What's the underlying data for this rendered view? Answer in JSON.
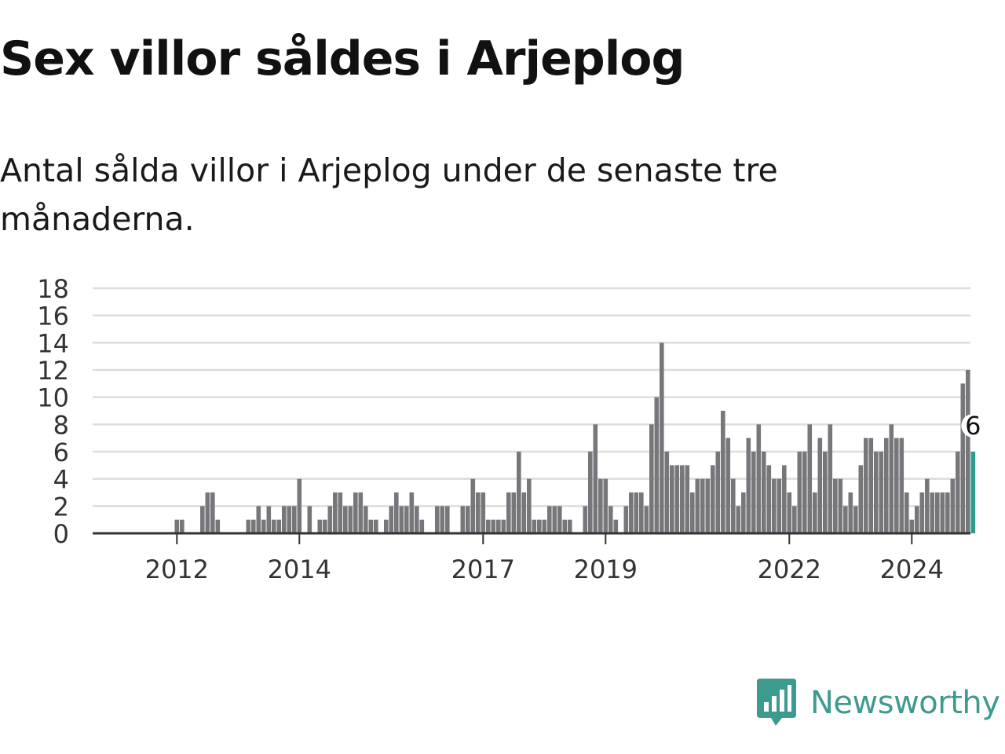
{
  "title": "Sex villor såldes i Arjeplog",
  "subtitle": "Antal sålda villor i Arjeplog under de senaste tre månaderna.",
  "brand": {
    "name": "Newsworthy",
    "icon": "newsworthy-logo-icon",
    "color": "#3d9a8e"
  },
  "colors": {
    "bar": "#77767b",
    "highlight": "#2a9d8f",
    "grid": "#dddddd",
    "axis": "#333333"
  },
  "chart_data": {
    "type": "bar",
    "ylim": [
      0,
      18
    ],
    "yticks": [
      0,
      2,
      4,
      6,
      8,
      10,
      12,
      14,
      16,
      18
    ],
    "xticks": [
      {
        "label": "2012",
        "index": 8
      },
      {
        "label": "2014",
        "index": 32
      },
      {
        "label": "2017",
        "index": 68
      },
      {
        "label": "2019",
        "index": 92
      },
      {
        "label": "2022",
        "index": 128
      },
      {
        "label": "2024",
        "index": 152
      }
    ],
    "grid": true,
    "values": [
      0,
      0,
      0,
      0,
      0,
      0,
      0,
      0,
      1,
      1,
      0,
      0,
      0,
      2,
      3,
      3,
      1,
      0,
      0,
      0,
      0,
      0,
      1,
      1,
      2,
      1,
      2,
      1,
      1,
      2,
      2,
      2,
      4,
      0,
      2,
      0,
      1,
      1,
      2,
      3,
      3,
      2,
      2,
      3,
      3,
      2,
      1,
      1,
      0,
      1,
      2,
      3,
      2,
      2,
      3,
      2,
      1,
      0,
      0,
      2,
      2,
      2,
      0,
      0,
      2,
      2,
      4,
      3,
      3,
      1,
      1,
      1,
      1,
      3,
      3,
      6,
      3,
      4,
      1,
      1,
      1,
      2,
      2,
      2,
      1,
      1,
      0,
      0,
      2,
      6,
      8,
      4,
      4,
      2,
      1,
      0,
      2,
      3,
      3,
      3,
      2,
      8,
      10,
      14,
      6,
      5,
      5,
      5,
      5,
      3,
      4,
      4,
      4,
      5,
      6,
      9,
      7,
      4,
      2,
      3,
      7,
      6,
      8,
      6,
      5,
      4,
      4,
      5,
      3,
      2,
      6,
      6,
      8,
      3,
      7,
      6,
      8,
      4,
      4,
      2,
      3,
      2,
      5,
      7,
      7,
      6,
      6,
      7,
      8,
      7,
      7,
      3,
      1,
      2,
      3,
      4,
      3,
      3,
      3,
      3,
      4,
      6,
      11,
      12,
      6
    ],
    "highlight_index": 164,
    "highlight_label": "6"
  }
}
